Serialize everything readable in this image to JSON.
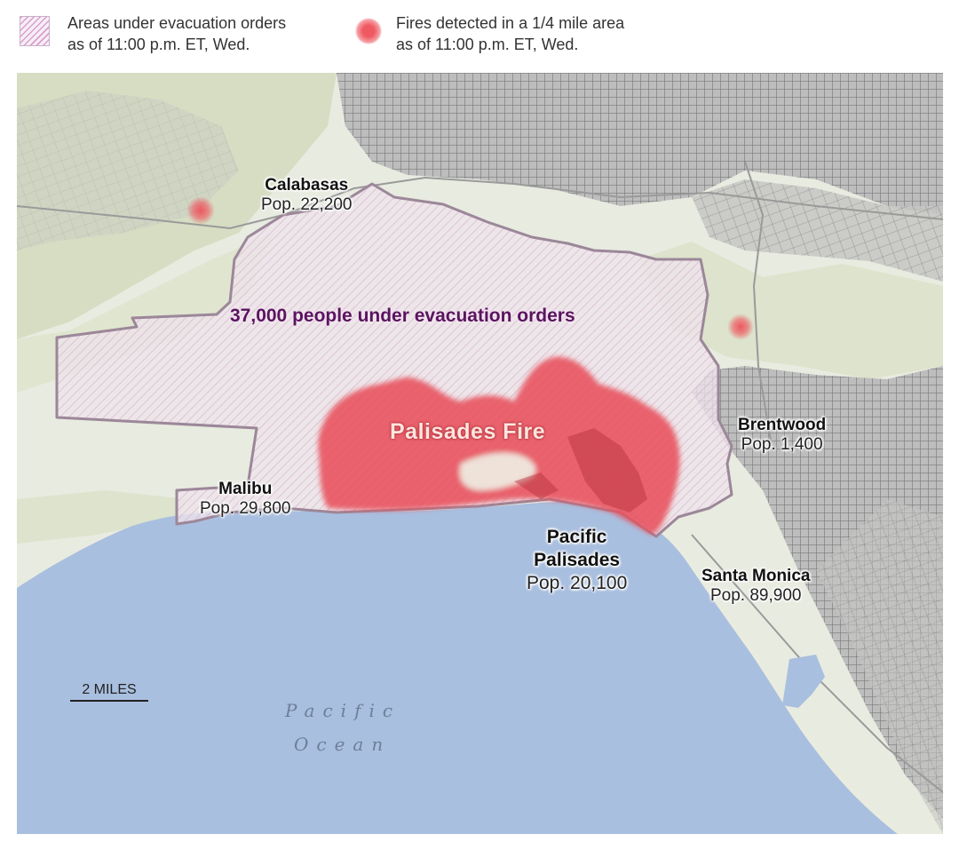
{
  "legend": {
    "evacuation": {
      "line1": "Areas under evacuation orders",
      "line2": "as of 11:00 p.m. ET, Wed."
    },
    "fires": {
      "line1": "Fires detected in a 1/4 mile area",
      "line2": "as of 11:00 p.m. ET, Wed."
    }
  },
  "map": {
    "colors": {
      "land": "#e8ebe0",
      "hills": "#d9e0c8",
      "ocean": "#a9bfdf",
      "urban": "#8d8d8d",
      "evac_fill": "#efe4ec",
      "evac_border": "#9c8799",
      "fire": "#e8505c"
    },
    "evacuation_label": "37,000 people under evacuation orders",
    "fire_label": "Palisades Fire",
    "places": [
      {
        "name": "Calabasas",
        "pop": "Pop. 22,200"
      },
      {
        "name": "Malibu",
        "pop": "Pop. 29,800"
      },
      {
        "name": "Brentwood",
        "pop": "Pop. 1,400"
      },
      {
        "name": "Pacific",
        "name2": "Palisades",
        "pop": "Pop. 20,100"
      },
      {
        "name": "Santa Monica",
        "pop": "Pop. 89,900"
      }
    ],
    "ocean_label": {
      "line1": "Pacific",
      "line2": "Ocean"
    },
    "scale": {
      "label": "2 MILES"
    }
  }
}
